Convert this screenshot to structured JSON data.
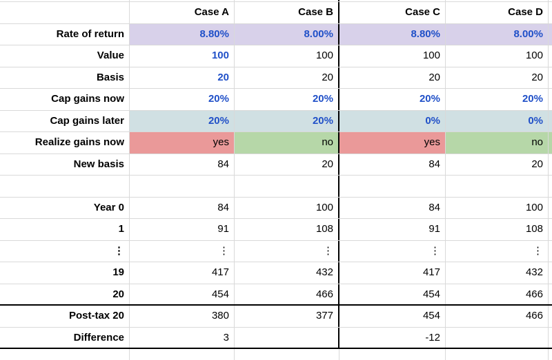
{
  "header": {
    "labels": [
      "Case A",
      "Case B",
      "Case C",
      "Case D"
    ]
  },
  "rows": [
    {
      "id": "rate-of-return",
      "label": "Rate of return",
      "values": [
        "8.80%",
        "8.00%",
        "8.80%",
        "8.00%"
      ],
      "blue": [
        true,
        true,
        true,
        true
      ],
      "row_bg": "lavender"
    },
    {
      "id": "value",
      "label": "Value",
      "values": [
        "100",
        "100",
        "100",
        "100"
      ],
      "blue": [
        true,
        false,
        false,
        false
      ]
    },
    {
      "id": "basis",
      "label": "Basis",
      "values": [
        "20",
        "20",
        "20",
        "20"
      ],
      "blue": [
        true,
        false,
        false,
        false
      ]
    },
    {
      "id": "cap-gains-now",
      "label": "Cap gains now",
      "values": [
        "20%",
        "20%",
        "20%",
        "20%"
      ],
      "blue": [
        true,
        true,
        true,
        true
      ]
    },
    {
      "id": "cap-gains-later",
      "label": "Cap gains later",
      "values": [
        "20%",
        "20%",
        "0%",
        "0%"
      ],
      "blue": [
        true,
        true,
        true,
        true
      ],
      "row_bg": "lightblue"
    },
    {
      "id": "realize-gains-now",
      "label": "Realize gains now",
      "values": [
        "yes",
        "no",
        "yes",
        "no"
      ],
      "cell_bg": [
        "red",
        "green",
        "red",
        "green"
      ]
    },
    {
      "id": "new-basis",
      "label": "New basis",
      "values": [
        "84",
        "20",
        "84",
        "20"
      ]
    },
    {
      "id": "spacer",
      "label": "",
      "values": [
        "",
        "",
        "",
        ""
      ]
    },
    {
      "id": "year-0",
      "label": "Year 0",
      "values": [
        "84",
        "100",
        "84",
        "100"
      ]
    },
    {
      "id": "year-1",
      "label": "1",
      "values": [
        "91",
        "108",
        "91",
        "108"
      ]
    },
    {
      "id": "ellipsis",
      "label": "⋮",
      "values": [
        "⋮",
        "⋮",
        "⋮",
        "⋮"
      ]
    },
    {
      "id": "year-19",
      "label": "19",
      "values": [
        "417",
        "432",
        "417",
        "432"
      ]
    },
    {
      "id": "year-20",
      "label": "20",
      "values": [
        "454",
        "466",
        "454",
        "466"
      ],
      "thick_bottom": true
    },
    {
      "id": "post-tax-20",
      "label": "Post-tax 20",
      "values": [
        "380",
        "377",
        "454",
        "466"
      ]
    },
    {
      "id": "difference",
      "label": "Difference",
      "values": [
        "3",
        "",
        "-12",
        ""
      ],
      "thick_bottom": true
    }
  ],
  "colors": {
    "blue_text": "#2050c8",
    "lavender": "#d8d1ea",
    "light_blue": "#d0e0e3",
    "red": "#ea9999",
    "green": "#b6d7a8",
    "gridline": "#d9d9d9",
    "divider_black": "#000000"
  }
}
